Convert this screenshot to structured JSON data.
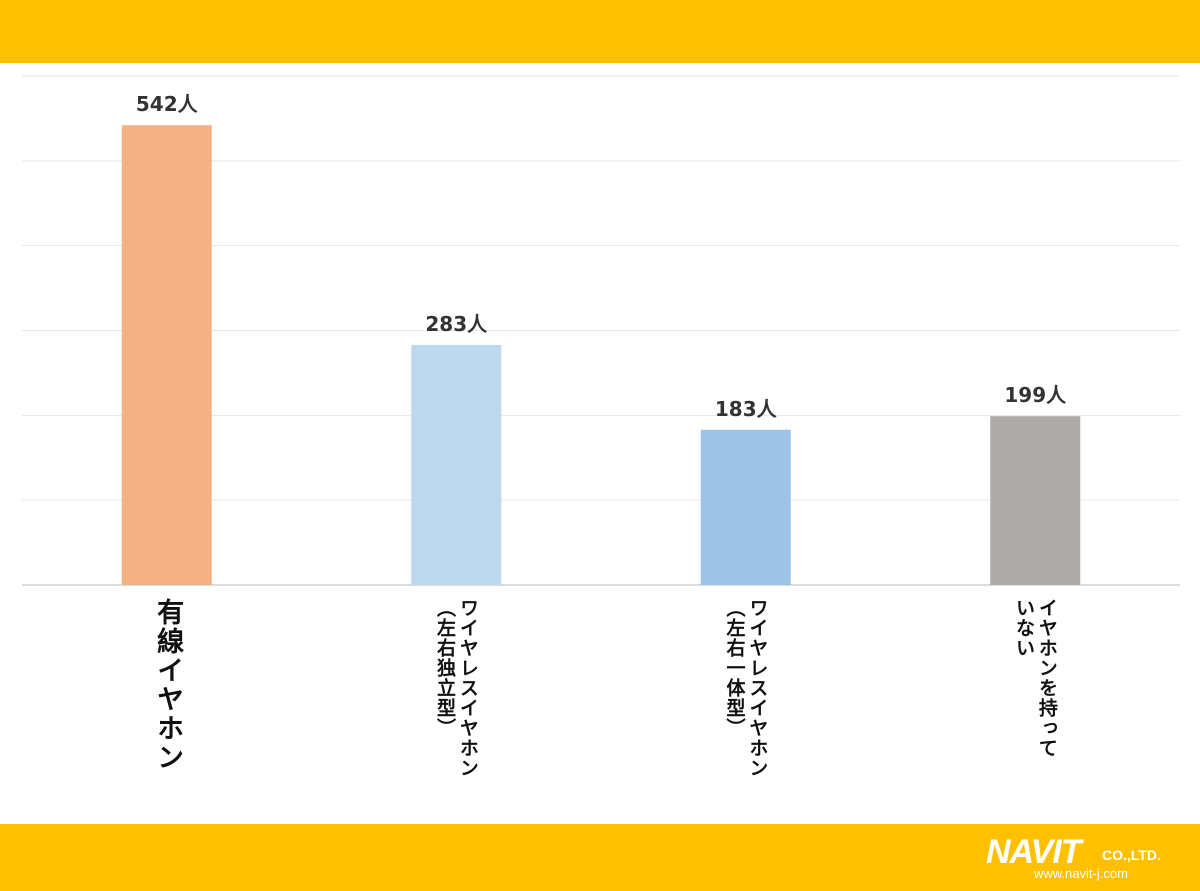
{
  "theme": {
    "band_color": "#FFC000",
    "grid_color": "#E6E6E6",
    "axis_color": "#D0D0D0"
  },
  "chart_data": {
    "type": "bar",
    "title": "",
    "xlabel": "",
    "ylabel": "",
    "ylim": [
      0,
      600
    ],
    "gridlines": [
      0,
      100,
      200,
      300,
      400,
      500,
      600
    ],
    "grid": true,
    "unit_suffix": "人",
    "categories": [
      "有線イヤホン",
      "ワイヤレスイヤホン\n（左右独立型）",
      "ワイヤレスイヤホン\n（左右一体型）",
      "イヤホンを持って\nいない"
    ],
    "values": [
      542,
      283,
      183,
      199
    ],
    "data_labels": [
      "542人",
      "283人",
      "183人",
      "199人"
    ],
    "colors": [
      "#F4B183",
      "#BDD7EE",
      "#9DC3E6",
      "#AEAAAA"
    ]
  },
  "logo": {
    "name": "NAVIT",
    "suffix": "CO.,LTD.",
    "url": "www.navit-j.com"
  }
}
